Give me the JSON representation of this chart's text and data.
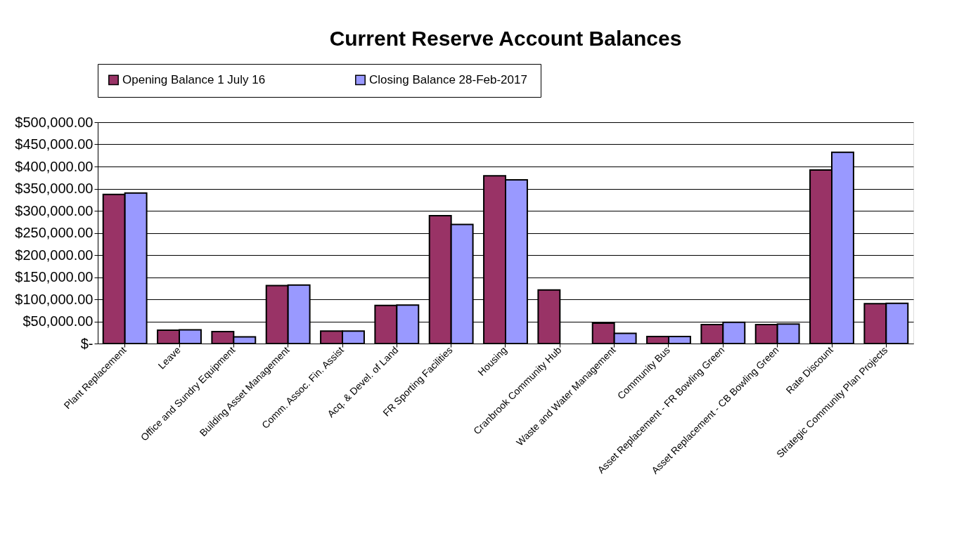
{
  "chart_data": {
    "type": "bar",
    "title": "Current Reserve Account Balances",
    "categories": [
      "Plant Replacement",
      "Leave",
      "Office and Sundry Equipment",
      "Building Asset Management",
      "Comm. Assoc. Fin. Assist",
      "Acq. & Devel. of Land",
      "FR Sporting Facilities",
      "Housing",
      "Cranbrook Community Hub",
      "Waste and Water Management",
      "Community Bus",
      "Asset Replacement - FR Bowling Green",
      "Asset Replacement - CB Bowling Green",
      "Rate Discount",
      "Strategic Community Plan Projects"
    ],
    "series": [
      {
        "name": "Opening  Balance 1 July 16",
        "color": "#993366",
        "values": [
          337000,
          30000,
          27000,
          131000,
          28000,
          86000,
          289000,
          379000,
          121000,
          46000,
          16000,
          43000,
          43000,
          392000,
          90000
        ]
      },
      {
        "name": "Closing  Balance 28-Feb-2017",
        "color": "#9999ff",
        "values": [
          340000,
          31000,
          15000,
          132000,
          28000,
          87000,
          269000,
          370000,
          null,
          23000,
          16000,
          48000,
          44000,
          432000,
          91000
        ]
      }
    ],
    "ylim": [
      0,
      500000
    ],
    "yticks": [
      {
        "value": 0,
        "label": "$-"
      },
      {
        "value": 50000,
        "label": "$50,000.00"
      },
      {
        "value": 100000,
        "label": "$100,000.00"
      },
      {
        "value": 150000,
        "label": "$150,000.00"
      },
      {
        "value": 200000,
        "label": "$200,000.00"
      },
      {
        "value": 250000,
        "label": "$250,000.00"
      },
      {
        "value": 300000,
        "label": "$300,000.00"
      },
      {
        "value": 350000,
        "label": "$350,000.00"
      },
      {
        "value": 400000,
        "label": "$400,000.00"
      },
      {
        "value": 450000,
        "label": "$450,000.00"
      },
      {
        "value": 500000,
        "label": "$500,000.00"
      }
    ],
    "grid": "y",
    "legend": "top"
  }
}
